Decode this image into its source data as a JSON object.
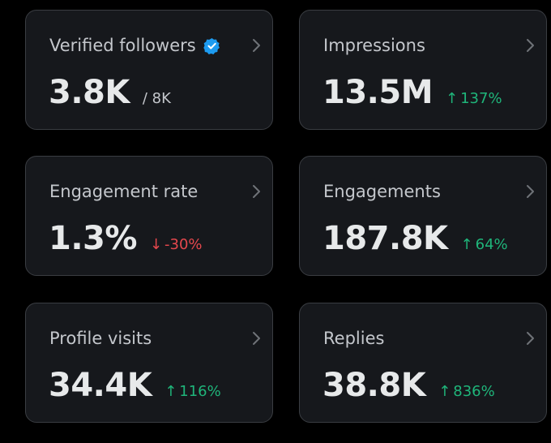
{
  "cards": [
    {
      "title": "Verified followers",
      "value": "3.8K",
      "suffix": "/ 8K",
      "icon": "verified-badge-icon"
    },
    {
      "title": "Impressions",
      "value": "13.5M",
      "change": "137%",
      "direction": "up"
    },
    {
      "title": "Engagement rate",
      "value": "1.3%",
      "change": "-30%",
      "direction": "down"
    },
    {
      "title": "Engagements",
      "value": "187.8K",
      "change": "64%",
      "direction": "up"
    },
    {
      "title": "Profile visits",
      "value": "34.4K",
      "change": "116%",
      "direction": "up"
    },
    {
      "title": "Replies",
      "value": "38.8K",
      "change": "836%",
      "direction": "up"
    }
  ],
  "colors": {
    "background": "#000000",
    "card": "#16181c",
    "border": "#3a3d42",
    "positive": "#1fb57a",
    "negative": "#e5484d",
    "verified": "#1d9bf0"
  },
  "icons": {
    "up_arrow": "↑",
    "down_arrow": "↓"
  }
}
